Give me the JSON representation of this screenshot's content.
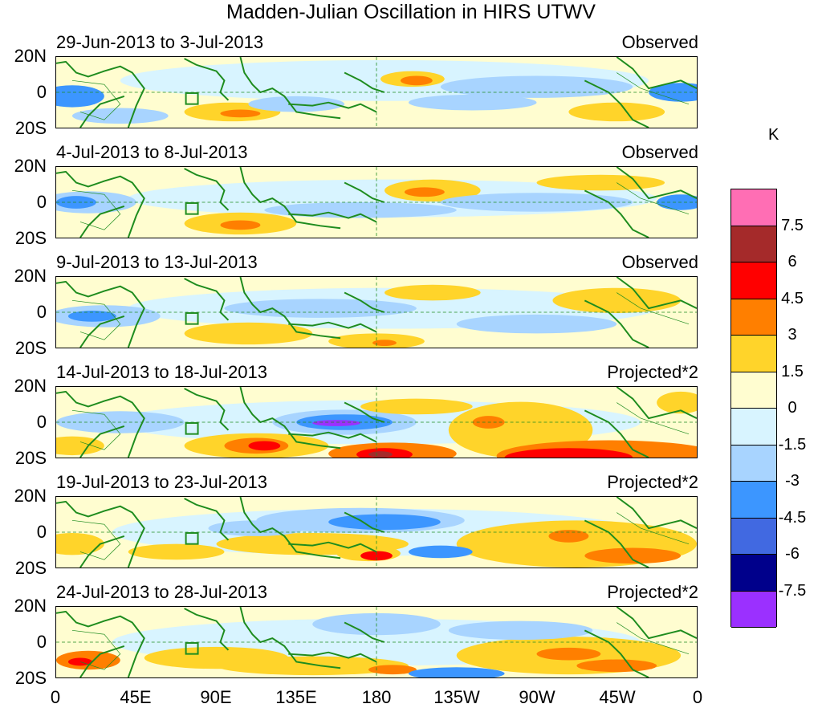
{
  "title": "Madden-Julian Oscillation in HIRS UTWV",
  "unit": "K",
  "lat_labels": [
    "20N",
    "0",
    "20S"
  ],
  "lon_labels": [
    "0",
    "45E",
    "90E",
    "135E",
    "180",
    "135W",
    "90W",
    "45W",
    "0"
  ],
  "panels": [
    {
      "date": "29-Jun-2013 to 3-Jul-2013",
      "kind": "Observed"
    },
    {
      "date": "4-Jul-2013 to 8-Jul-2013",
      "kind": "Observed"
    },
    {
      "date": "9-Jul-2013 to 13-Jul-2013",
      "kind": "Observed"
    },
    {
      "date": "14-Jul-2013 to 18-Jul-2013",
      "kind": "Projected*2"
    },
    {
      "date": "19-Jul-2013 to 23-Jul-2013",
      "kind": "Projected*2"
    },
    {
      "date": "24-Jul-2013 to 28-Jul-2013",
      "kind": "Projected*2"
    }
  ],
  "colorbar": {
    "labels": [
      "7.5",
      "6",
      "4.5",
      "3",
      "1.5",
      "0",
      "-1.5",
      "-3",
      "-4.5",
      "-6",
      "-7.5"
    ],
    "colors": [
      "#ff6eb4",
      "#a52a2a",
      "#ff0000",
      "#ff7f00",
      "#ffd42a",
      "#fffdd0",
      "#d8f4ff",
      "#a8d4ff",
      "#3c96ff",
      "#4169e1",
      "#00008b",
      "#9b30ff"
    ]
  }
}
